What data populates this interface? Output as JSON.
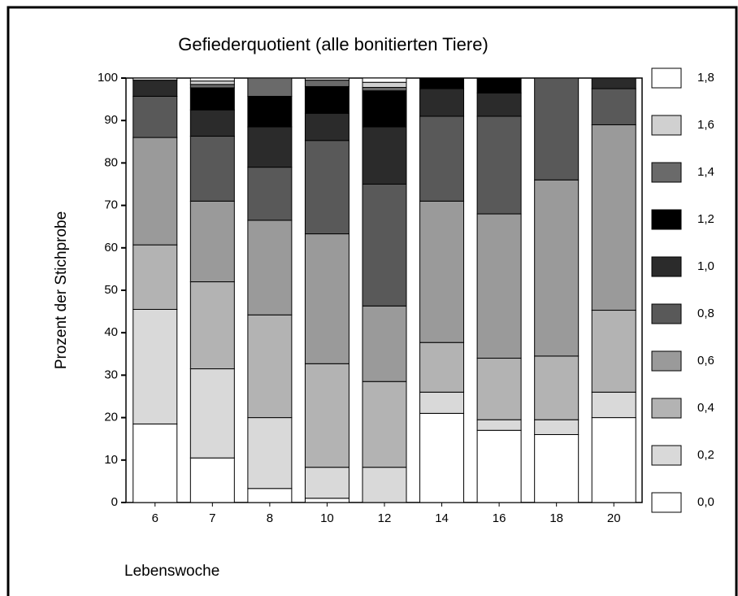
{
  "chart_data": {
    "type": "stacked_bar",
    "title": "Gefiederquotient (alle bonitierten Tiere)",
    "y_label": "Prozent der Stichprobe",
    "x_label": "Lebenswoche",
    "categories": [
      "6",
      "7",
      "8",
      "10",
      "12",
      "14",
      "16",
      "18",
      "20"
    ],
    "ylim": [
      0,
      100
    ],
    "yticks": [
      0,
      10,
      20,
      30,
      40,
      50,
      60,
      70,
      80,
      90,
      100
    ],
    "series": [
      {
        "name": "0,0",
        "color": "#ffffff",
        "values": [
          18.5,
          10.5,
          3.3,
          1,
          0,
          21,
          17,
          16,
          20
        ]
      },
      {
        "name": "0,2",
        "color": "#d9d9d9",
        "values": [
          27,
          21,
          16.7,
          7.3,
          8.3,
          5,
          2.5,
          3.5,
          6
        ]
      },
      {
        "name": "0,4",
        "color": "#b3b3b3",
        "values": [
          15.2,
          20.5,
          24.2,
          24.4,
          20.2,
          11.7,
          14.5,
          15,
          19.3
        ]
      },
      {
        "name": "0,6",
        "color": "#9a9a9a",
        "values": [
          25.3,
          19,
          22.3,
          30.6,
          17.8,
          33.3,
          34,
          41.5,
          43.7
        ]
      },
      {
        "name": "0,8",
        "color": "#595959",
        "values": [
          9.7,
          15.3,
          12.5,
          22,
          28.7,
          20,
          23,
          24,
          8.5
        ]
      },
      {
        "name": "1,0",
        "color": "#2b2b2b",
        "values": [
          3.8,
          6.2,
          9.5,
          6.4,
          13.5,
          6.5,
          5.5,
          0,
          2.5
        ]
      },
      {
        "name": "1,2",
        "color": "#000000",
        "values": [
          0,
          5.2,
          7.2,
          6.3,
          8.5,
          2.5,
          3.5,
          0,
          0
        ]
      },
      {
        "name": "1,4",
        "color": "#6a6a6a",
        "values": [
          0,
          0.8,
          4.3,
          1.5,
          0.8,
          0,
          0,
          0,
          0
        ]
      },
      {
        "name": "1,6",
        "color": "#d0d0d0",
        "values": [
          0.5,
          0.8,
          0,
          0.5,
          1.2,
          0,
          0,
          0,
          0
        ]
      },
      {
        "name": "1,8",
        "color": "#ffffff",
        "values": [
          0,
          0.7,
          0,
          0,
          1,
          0,
          0,
          0,
          0
        ]
      }
    ]
  }
}
